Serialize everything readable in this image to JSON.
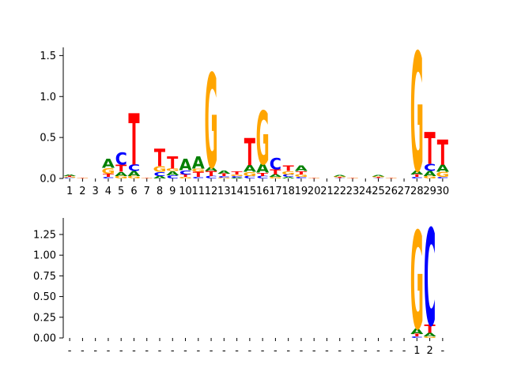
{
  "chart_data": [
    {
      "type": "sequence-logo",
      "ylim": [
        0,
        1.6
      ],
      "yticks": [
        0.0,
        0.5,
        1.0,
        1.5
      ],
      "ytick_labels": [
        "0.0",
        "0.5",
        "1.0",
        "1.5"
      ],
      "xtick_labels": [
        "1",
        "2",
        "3",
        "4",
        "5",
        "6",
        "7",
        "8",
        "9",
        "10",
        "11",
        "12",
        "13",
        "14",
        "15",
        "16",
        "17",
        "18",
        "19",
        "20",
        "21",
        "22",
        "23",
        "24",
        "25",
        "26",
        "27",
        "28",
        "29",
        "30"
      ],
      "positions": [
        {
          "letters": [
            {
              "c": "C",
              "h": 0.01
            },
            {
              "c": "G",
              "h": 0.01
            },
            {
              "c": "T",
              "h": 0.01
            },
            {
              "c": "A",
              "h": 0.02
            }
          ]
        },
        {
          "letters": [
            {
              "c": "T",
              "h": 0.005
            },
            {
              "c": "G",
              "h": 0.005
            }
          ]
        },
        {
          "letters": []
        },
        {
          "letters": [
            {
              "c": "C",
              "h": 0.02
            },
            {
              "c": "T",
              "h": 0.04
            },
            {
              "c": "G",
              "h": 0.07
            },
            {
              "c": "A",
              "h": 0.11
            }
          ]
        },
        {
          "letters": [
            {
              "c": "G",
              "h": 0.03
            },
            {
              "c": "A",
              "h": 0.05
            },
            {
              "c": "T",
              "h": 0.09
            },
            {
              "c": "C",
              "h": 0.15
            }
          ]
        },
        {
          "letters": [
            {
              "c": "G",
              "h": 0.03
            },
            {
              "c": "A",
              "h": 0.06
            },
            {
              "c": "C",
              "h": 0.08
            },
            {
              "c": "T",
              "h": 0.63
            }
          ]
        },
        {
          "letters": [
            {
              "c": "T",
              "h": 0.005
            },
            {
              "c": "G",
              "h": 0.005
            }
          ]
        },
        {
          "letters": [
            {
              "c": "A",
              "h": 0.03
            },
            {
              "c": "C",
              "h": 0.05
            },
            {
              "c": "G",
              "h": 0.07
            },
            {
              "c": "T",
              "h": 0.21
            }
          ]
        },
        {
          "letters": [
            {
              "c": "C",
              "h": 0.04
            },
            {
              "c": "A",
              "h": 0.05
            },
            {
              "c": "G",
              "h": 0.03
            },
            {
              "c": "T",
              "h": 0.15
            }
          ]
        },
        {
          "letters": [
            {
              "c": "G",
              "h": 0.02
            },
            {
              "c": "T",
              "h": 0.03
            },
            {
              "c": "C",
              "h": 0.05
            },
            {
              "c": "A",
              "h": 0.14
            }
          ]
        },
        {
          "letters": [
            {
              "c": "C",
              "h": 0.02
            },
            {
              "c": "T",
              "h": 0.06
            },
            {
              "c": "G",
              "h": 0.04
            },
            {
              "c": "A",
              "h": 0.15
            }
          ]
        },
        {
          "letters": [
            {
              "c": "C",
              "h": 0.03
            },
            {
              "c": "T",
              "h": 0.06
            },
            {
              "c": "A",
              "h": 0.05
            },
            {
              "c": "G",
              "h": 1.15
            }
          ]
        },
        {
          "letters": [
            {
              "c": "G",
              "h": 0.01
            },
            {
              "c": "C",
              "h": 0.02
            },
            {
              "c": "T",
              "h": 0.03
            },
            {
              "c": "A",
              "h": 0.04
            }
          ]
        },
        {
          "letters": [
            {
              "c": "A",
              "h": 0.01
            },
            {
              "c": "C",
              "h": 0.02
            },
            {
              "c": "G",
              "h": 0.02
            },
            {
              "c": "T",
              "h": 0.04
            }
          ]
        },
        {
          "letters": [
            {
              "c": "C",
              "h": 0.03
            },
            {
              "c": "G",
              "h": 0.05
            },
            {
              "c": "A",
              "h": 0.08
            },
            {
              "c": "T",
              "h": 0.33
            }
          ]
        },
        {
          "letters": [
            {
              "c": "C",
              "h": 0.03
            },
            {
              "c": "T",
              "h": 0.04
            },
            {
              "c": "A",
              "h": 0.11
            },
            {
              "c": "G",
              "h": 0.65
            }
          ]
        },
        {
          "letters": [
            {
              "c": "G",
              "h": 0.02
            },
            {
              "c": "A",
              "h": 0.03
            },
            {
              "c": "T",
              "h": 0.06
            },
            {
              "c": "C",
              "h": 0.14
            }
          ]
        },
        {
          "letters": [
            {
              "c": "A",
              "h": 0.02
            },
            {
              "c": "C",
              "h": 0.03
            },
            {
              "c": "G",
              "h": 0.04
            },
            {
              "c": "T",
              "h": 0.07
            }
          ]
        },
        {
          "letters": [
            {
              "c": "C",
              "h": 0.02
            },
            {
              "c": "G",
              "h": 0.03
            },
            {
              "c": "T",
              "h": 0.04
            },
            {
              "c": "A",
              "h": 0.07
            }
          ]
        },
        {
          "letters": [
            {
              "c": "T",
              "h": 0.005
            },
            {
              "c": "G",
              "h": 0.005
            }
          ]
        },
        {
          "letters": []
        },
        {
          "letters": [
            {
              "c": "C",
              "h": 0.005
            },
            {
              "c": "T",
              "h": 0.01
            },
            {
              "c": "G",
              "h": 0.01
            },
            {
              "c": "A",
              "h": 0.015
            }
          ]
        },
        {
          "letters": [
            {
              "c": "T",
              "h": 0.005
            },
            {
              "c": "G",
              "h": 0.005
            }
          ]
        },
        {
          "letters": []
        },
        {
          "letters": [
            {
              "c": "C",
              "h": 0.005
            },
            {
              "c": "T",
              "h": 0.01
            },
            {
              "c": "G",
              "h": 0.01
            },
            {
              "c": "A",
              "h": 0.015
            }
          ]
        },
        {
          "letters": [
            {
              "c": "T",
              "h": 0.005
            },
            {
              "c": "G",
              "h": 0.005
            }
          ]
        },
        {
          "letters": []
        },
        {
          "letters": [
            {
              "c": "C",
              "h": 0.02
            },
            {
              "c": "T",
              "h": 0.03
            },
            {
              "c": "A",
              "h": 0.05
            },
            {
              "c": "G",
              "h": 1.45
            }
          ]
        },
        {
          "letters": [
            {
              "c": "G",
              "h": 0.03
            },
            {
              "c": "A",
              "h": 0.06
            },
            {
              "c": "C",
              "h": 0.09
            },
            {
              "c": "T",
              "h": 0.39
            }
          ]
        },
        {
          "letters": [
            {
              "c": "C",
              "h": 0.02
            },
            {
              "c": "G",
              "h": 0.06
            },
            {
              "c": "A",
              "h": 0.09
            },
            {
              "c": "T",
              "h": 0.31
            }
          ]
        }
      ]
    },
    {
      "type": "sequence-logo",
      "ylim": [
        0,
        1.45
      ],
      "yticks": [
        0.0,
        0.25,
        0.5,
        0.75,
        1.0,
        1.25
      ],
      "ytick_labels": [
        "0.00",
        "0.25",
        "0.50",
        "0.75",
        "1.00",
        "1.25"
      ],
      "xtick_labels": [
        "-",
        "-",
        "-",
        "-",
        "-",
        "-",
        "-",
        "-",
        "-",
        "-",
        "-",
        "-",
        "-",
        "-",
        "-",
        "-",
        "-",
        "-",
        "-",
        "-",
        "-",
        "-",
        "-",
        "-",
        "-",
        "-",
        "-",
        "1",
        "2",
        "-"
      ],
      "positions": [
        {
          "letters": []
        },
        {
          "letters": []
        },
        {
          "letters": []
        },
        {
          "letters": []
        },
        {
          "letters": []
        },
        {
          "letters": []
        },
        {
          "letters": []
        },
        {
          "letters": []
        },
        {
          "letters": []
        },
        {
          "letters": []
        },
        {
          "letters": []
        },
        {
          "letters": []
        },
        {
          "letters": []
        },
        {
          "letters": []
        },
        {
          "letters": []
        },
        {
          "letters": []
        },
        {
          "letters": []
        },
        {
          "letters": []
        },
        {
          "letters": []
        },
        {
          "letters": []
        },
        {
          "letters": []
        },
        {
          "letters": []
        },
        {
          "letters": []
        },
        {
          "letters": []
        },
        {
          "letters": []
        },
        {
          "letters": []
        },
        {
          "letters": []
        },
        {
          "letters": [
            {
              "c": "C",
              "h": 0.02
            },
            {
              "c": "T",
              "h": 0.03
            },
            {
              "c": "A",
              "h": 0.07
            },
            {
              "c": "G",
              "h": 1.18
            }
          ]
        },
        {
          "letters": [
            {
              "c": "G",
              "h": 0.02
            },
            {
              "c": "A",
              "h": 0.04
            },
            {
              "c": "T",
              "h": 0.1
            },
            {
              "c": "C",
              "h": 1.17
            }
          ]
        },
        {
          "letters": []
        }
      ]
    }
  ],
  "colors": {
    "A": "#008000",
    "C": "#0000ff",
    "G": "#ffa500",
    "T": "#ff0000"
  }
}
